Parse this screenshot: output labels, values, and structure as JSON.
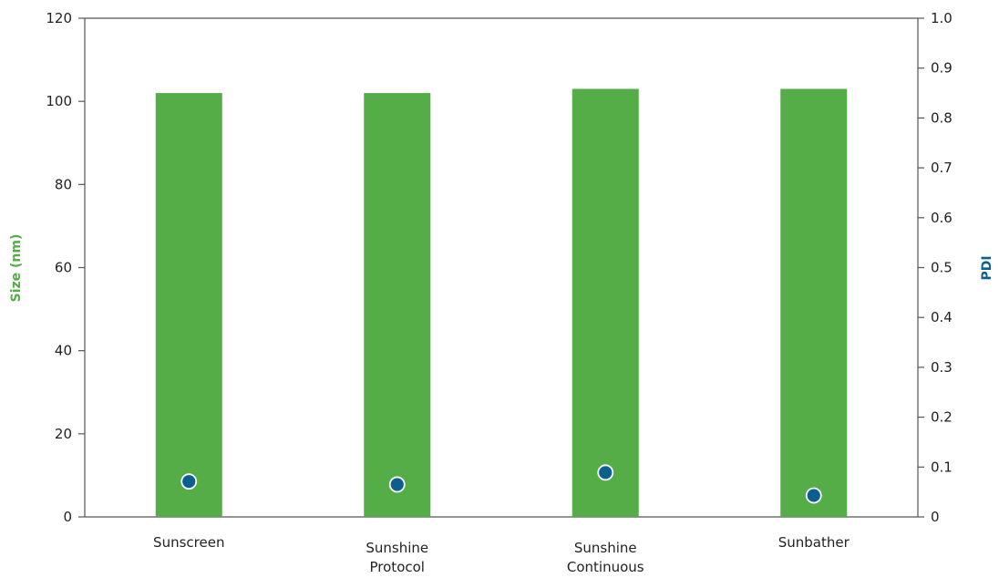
{
  "chart_data": {
    "type": "bar",
    "categories": [
      [
        "Sunscreen"
      ],
      [
        "Sunshine",
        "Protocol"
      ],
      [
        "Sunshine",
        "Continuous"
      ],
      [
        "Sunbather"
      ]
    ],
    "series": [
      {
        "values": [
          102,
          102,
          103,
          103
        ],
        "axis": "left",
        "kind": "bar",
        "color": "#54ad47"
      },
      {
        "values": [
          0.071,
          0.065,
          0.089,
          0.043
        ],
        "axis": "right",
        "kind": "scatter",
        "color": "#0b5f8c"
      }
    ],
    "ylabel": "Size (nm)",
    "ylabel_color": "#54ad47",
    "y2label": "PDI",
    "y2label_color": "#0b5f8c",
    "ylim": [
      0,
      120
    ],
    "yticks": [
      0,
      20,
      40,
      60,
      80,
      100,
      120
    ],
    "y2lim": [
      0,
      1.0
    ],
    "y2ticks": [
      "0",
      "0.1",
      "0.2",
      "0.3",
      "0.4",
      "0.5",
      "0.6",
      "0.7",
      "0.8",
      "0.9",
      "1.0"
    ],
    "grid": false,
    "legend": "none"
  }
}
